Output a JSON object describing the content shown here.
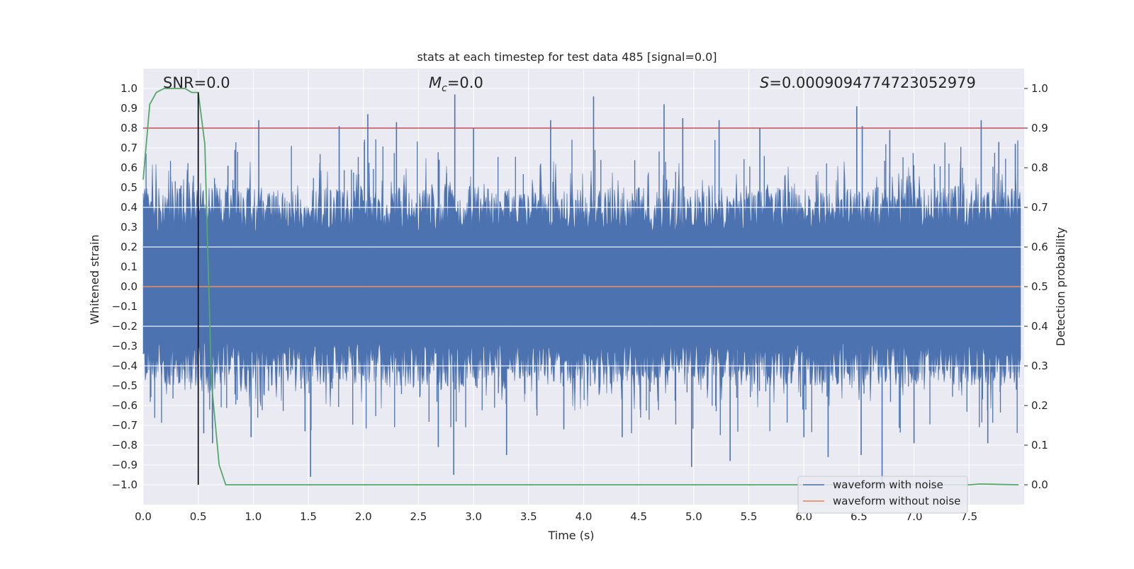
{
  "chart_data": {
    "type": "line",
    "title": "stats at each timestep for test data 485 [signal=0.0]",
    "xlabel": "Time (s)",
    "ylabel": "Whitened strain",
    "y2label": "Detection probability",
    "xlim": [
      0.0,
      8.0
    ],
    "ylim": [
      -1.1,
      1.1
    ],
    "y2lim": [
      -0.05,
      1.05
    ],
    "xticks": [
      "0.0",
      "0.5",
      "1.0",
      "1.5",
      "2.0",
      "2.5",
      "3.0",
      "3.5",
      "4.0",
      "4.5",
      "5.0",
      "5.5",
      "6.0",
      "6.5",
      "7.0",
      "7.5"
    ],
    "yticks": [
      "1.0",
      "0.9",
      "0.8",
      "0.7",
      "0.6",
      "0.5",
      "0.4",
      "0.3",
      "0.2",
      "0.1",
      "0.0",
      "-0.1",
      "-0.2",
      "-0.3",
      "-0.4",
      "-0.5",
      "-0.6",
      "-0.7",
      "-0.8",
      "-0.9",
      "-1.0"
    ],
    "y2ticks": [
      "1.0",
      "0.9",
      "0.8",
      "0.7",
      "0.6",
      "0.5",
      "0.4",
      "0.3",
      "0.2",
      "0.1",
      "0.0"
    ],
    "annotations": {
      "snr": "SNR=0.0",
      "mc_symbol": "M",
      "mc_sub": "c",
      "mc_value": "=0.0",
      "s_symbol": "S",
      "s_value": "=0.0009094774723052979"
    },
    "threshold_line": {
      "axis": "right",
      "value": 0.9,
      "color": "#c44e52"
    },
    "marker_line": {
      "x": 0.5,
      "y_from": -1.0,
      "y_to": 0.98,
      "color": "#000000"
    },
    "series": [
      {
        "name": "waveform with noise",
        "axis": "left",
        "color": "#4c72b0",
        "kind": "noise",
        "sample_rate_hz": 2048,
        "envelope_typical": 0.45,
        "peaks": [
          {
            "x": 0.5,
            "y": 0.97
          },
          {
            "x": 0.55,
            "y": -0.74
          },
          {
            "x": 0.63,
            "y": -0.79
          },
          {
            "x": 0.77,
            "y": 0.61
          },
          {
            "x": 0.98,
            "y": -0.76
          },
          {
            "x": 1.05,
            "y": 0.84
          },
          {
            "x": 1.52,
            "y": -0.96
          },
          {
            "x": 1.47,
            "y": -0.73
          },
          {
            "x": 1.78,
            "y": 0.81
          },
          {
            "x": 2.04,
            "y": 0.87
          },
          {
            "x": 2.3,
            "y": 0.83
          },
          {
            "x": 2.68,
            "y": -0.81
          },
          {
            "x": 2.82,
            "y": -0.95
          },
          {
            "x": 2.83,
            "y": 0.97
          },
          {
            "x": 3.0,
            "y": 0.8
          },
          {
            "x": 3.3,
            "y": -0.85
          },
          {
            "x": 3.7,
            "y": 0.84
          },
          {
            "x": 3.82,
            "y": -0.72
          },
          {
            "x": 4.09,
            "y": 0.96
          },
          {
            "x": 4.35,
            "y": -0.76
          },
          {
            "x": 4.73,
            "y": 0.92
          },
          {
            "x": 4.9,
            "y": 0.85
          },
          {
            "x": 4.98,
            "y": -0.91
          },
          {
            "x": 5.23,
            "y": 0.84
          },
          {
            "x": 5.33,
            "y": -0.88
          },
          {
            "x": 5.6,
            "y": 0.8
          },
          {
            "x": 6.0,
            "y": -0.76
          },
          {
            "x": 6.22,
            "y": -0.86
          },
          {
            "x": 6.48,
            "y": 0.91
          },
          {
            "x": 6.52,
            "y": -0.85
          },
          {
            "x": 6.53,
            "y": 0.81
          },
          {
            "x": 6.71,
            "y": -0.99
          },
          {
            "x": 6.78,
            "y": 0.79
          },
          {
            "x": 7.0,
            "y": -0.79
          },
          {
            "x": 7.61,
            "y": 0.84
          },
          {
            "x": 7.67,
            "y": -0.79
          },
          {
            "x": 7.77,
            "y": 0.73
          },
          {
            "x": 7.92,
            "y": 0.72
          }
        ]
      },
      {
        "name": "waveform without noise",
        "axis": "left",
        "color": "#dd8452",
        "x": [
          0.0,
          8.0
        ],
        "y": [
          0.0,
          0.0
        ]
      },
      {
        "name": "detection probability",
        "axis": "right",
        "color": "#55a868",
        "in_legend": false,
        "x": [
          0.0,
          0.06,
          0.12,
          0.19,
          0.25,
          0.31,
          0.38,
          0.44,
          0.5,
          0.56,
          0.62,
          0.69,
          0.75,
          0.81,
          0.88,
          1.0,
          2.0,
          3.0,
          4.0,
          5.0,
          6.0,
          7.0,
          7.5,
          7.6,
          7.95
        ],
        "y": [
          0.77,
          0.96,
          0.99,
          1.0,
          1.0,
          1.0,
          1.0,
          0.99,
          0.99,
          0.86,
          0.26,
          0.05,
          0.0,
          0.0,
          0.0,
          0.0,
          0.0,
          0.0,
          0.0,
          0.0,
          0.0,
          0.0,
          0.0,
          0.002,
          0.0
        ]
      }
    ],
    "legend": {
      "placement": "lower-right",
      "items": [
        {
          "label": "waveform with noise",
          "color": "#4c72b0"
        },
        {
          "label": "waveform without noise",
          "color": "#dd8452"
        }
      ]
    },
    "style": {
      "axes_bg": "#eaeaf2",
      "grid": "#ffffff"
    }
  }
}
